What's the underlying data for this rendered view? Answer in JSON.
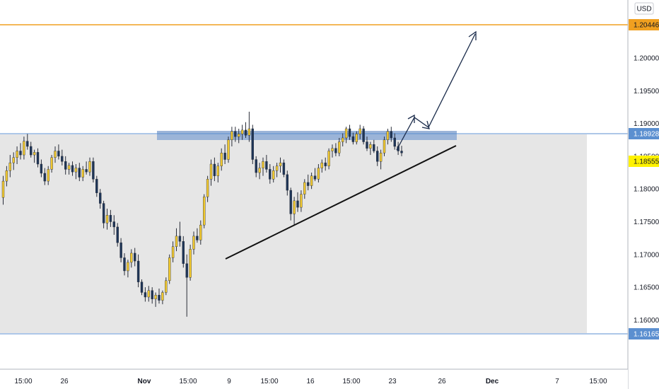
{
  "currency_label": "USD",
  "colors": {
    "bull": "#f0c830",
    "bear": "#1e3557",
    "wick": "#2a2e39",
    "resistance": "#5b8fd0",
    "resistance_zone": "#9bb4d8",
    "target": "#f0a020",
    "support_band": "#e6e6e6",
    "trendline": "#111111",
    "arrow": "#1a2b4a",
    "current_price_tag": "#fff200"
  },
  "chart_data": {
    "type": "candlestick",
    "y_ticks": [
      "1.16000",
      "1.16500",
      "1.17000",
      "1.17500",
      "1.18000",
      "1.18500",
      "1.19000",
      "1.19500",
      "1.20000"
    ],
    "ylim": [
      1.1565,
      1.2085
    ],
    "x_ticks": [
      "15:00",
      "26",
      "Nov",
      "15:00",
      "9",
      "15:00",
      "16",
      "15:00",
      "23",
      "26",
      "Dec",
      "7",
      "15:00"
    ],
    "price_levels": [
      {
        "label": "1.20446",
        "price": 1.20446,
        "role": "target",
        "color": "#f0a020"
      },
      {
        "label": "1.18928",
        "price": 1.18928,
        "role": "resistance",
        "color": "#5b8fd0"
      },
      {
        "label": "1.18555",
        "price": 1.18555,
        "role": "current",
        "color": "#fff200"
      },
      {
        "label": "1.16165",
        "price": 1.16165,
        "role": "support",
        "color": "#5b8fd0"
      }
    ],
    "candles": [
      [
        1.1787,
        1.182,
        1.1776,
        1.1812
      ],
      [
        1.1812,
        1.1835,
        1.1804,
        1.1828
      ],
      [
        1.1828,
        1.1852,
        1.1818,
        1.184
      ],
      [
        1.184,
        1.1856,
        1.1829,
        1.1848
      ],
      [
        1.1848,
        1.1865,
        1.1838,
        1.1858
      ],
      [
        1.1858,
        1.187,
        1.1845,
        1.1852
      ],
      [
        1.1852,
        1.188,
        1.1845,
        1.1873
      ],
      [
        1.1873,
        1.1884,
        1.186,
        1.1865
      ],
      [
        1.1865,
        1.1872,
        1.1848,
        1.1852
      ],
      [
        1.1852,
        1.186,
        1.184,
        1.1856
      ],
      [
        1.1856,
        1.1862,
        1.1833,
        1.1838
      ],
      [
        1.1838,
        1.1845,
        1.1818,
        1.1824
      ],
      [
        1.1824,
        1.1832,
        1.1806,
        1.1812
      ],
      [
        1.1812,
        1.1835,
        1.1806,
        1.183
      ],
      [
        1.183,
        1.1852,
        1.1825,
        1.1848
      ],
      [
        1.1848,
        1.1865,
        1.184,
        1.1858
      ],
      [
        1.1858,
        1.1868,
        1.1845,
        1.185
      ],
      [
        1.185,
        1.186,
        1.1836,
        1.1842
      ],
      [
        1.1842,
        1.185,
        1.1822,
        1.183
      ],
      [
        1.183,
        1.184,
        1.1822,
        1.1836
      ],
      [
        1.1836,
        1.1842,
        1.182,
        1.1826
      ],
      [
        1.1826,
        1.1838,
        1.1815,
        1.1832
      ],
      [
        1.1832,
        1.184,
        1.1812,
        1.1818
      ],
      [
        1.1818,
        1.1835,
        1.1812,
        1.183
      ],
      [
        1.183,
        1.1842,
        1.1822,
        1.1826
      ],
      [
        1.1826,
        1.1848,
        1.182,
        1.1842
      ],
      [
        1.1842,
        1.1848,
        1.181,
        1.1815
      ],
      [
        1.1815,
        1.182,
        1.1788,
        1.1794
      ],
      [
        1.1794,
        1.18,
        1.177,
        1.1778
      ],
      [
        1.1778,
        1.1782,
        1.174,
        1.1748
      ],
      [
        1.1748,
        1.177,
        1.1738,
        1.176
      ],
      [
        1.176,
        1.1768,
        1.1742,
        1.175
      ],
      [
        1.175,
        1.176,
        1.173,
        1.1742
      ],
      [
        1.1742,
        1.1748,
        1.1712,
        1.1718
      ],
      [
        1.1718,
        1.1725,
        1.1688,
        1.1695
      ],
      [
        1.1695,
        1.1702,
        1.1668,
        1.1675
      ],
      [
        1.1675,
        1.1692,
        1.1665,
        1.1688
      ],
      [
        1.1688,
        1.1708,
        1.168,
        1.1702
      ],
      [
        1.1702,
        1.171,
        1.1682,
        1.169
      ],
      [
        1.169,
        1.17,
        1.165,
        1.1658
      ],
      [
        1.1658,
        1.1662,
        1.1638,
        1.1642
      ],
      [
        1.1642,
        1.165,
        1.1628,
        1.1635
      ],
      [
        1.1635,
        1.1652,
        1.1628,
        1.1645
      ],
      [
        1.1645,
        1.165,
        1.1625,
        1.1632
      ],
      [
        1.1632,
        1.1642,
        1.162,
        1.1638
      ],
      [
        1.1638,
        1.1648,
        1.1625,
        1.163
      ],
      [
        1.163,
        1.1645,
        1.1624,
        1.1642
      ],
      [
        1.1642,
        1.1665,
        1.1638,
        1.166
      ],
      [
        1.166,
        1.17,
        1.1655,
        1.1695
      ],
      [
        1.1695,
        1.172,
        1.1688,
        1.1712
      ],
      [
        1.1712,
        1.174,
        1.1705,
        1.1728
      ],
      [
        1.1728,
        1.175,
        1.1712,
        1.172
      ],
      [
        1.172,
        1.1728,
        1.168,
        1.1686
      ],
      [
        1.1686,
        1.17,
        1.1605,
        1.1665
      ],
      [
        1.1665,
        1.1715,
        1.166,
        1.1708
      ],
      [
        1.1708,
        1.1735,
        1.17,
        1.1728
      ],
      [
        1.1728,
        1.174,
        1.1718,
        1.1722
      ],
      [
        1.1722,
        1.1752,
        1.1715,
        1.1745
      ],
      [
        1.1745,
        1.1792,
        1.174,
        1.1788
      ],
      [
        1.1788,
        1.182,
        1.178,
        1.1815
      ],
      [
        1.1815,
        1.1845,
        1.1805,
        1.1838
      ],
      [
        1.1838,
        1.1848,
        1.1812,
        1.182
      ],
      [
        1.182,
        1.184,
        1.181,
        1.1835
      ],
      [
        1.1835,
        1.1862,
        1.1828,
        1.1855
      ],
      [
        1.1855,
        1.1868,
        1.1838,
        1.1845
      ],
      [
        1.1845,
        1.188,
        1.184,
        1.1875
      ],
      [
        1.1875,
        1.1895,
        1.1865,
        1.1888
      ],
      [
        1.1888,
        1.1895,
        1.1872,
        1.188
      ],
      [
        1.188,
        1.1892,
        1.187,
        1.1884
      ],
      [
        1.1884,
        1.1898,
        1.1875,
        1.189
      ],
      [
        1.189,
        1.1902,
        1.1878,
        1.1882
      ],
      [
        1.1882,
        1.1918,
        1.1872,
        1.1892
      ],
      [
        1.1892,
        1.1898,
        1.1838,
        1.1845
      ],
      [
        1.1845,
        1.185,
        1.1818,
        1.1825
      ],
      [
        1.1825,
        1.184,
        1.1815,
        1.1832
      ],
      [
        1.1832,
        1.1848,
        1.182,
        1.1842
      ],
      [
        1.1842,
        1.1852,
        1.1825,
        1.183
      ],
      [
        1.183,
        1.1838,
        1.1808,
        1.1815
      ],
      [
        1.1815,
        1.1835,
        1.181,
        1.1828
      ],
      [
        1.1828,
        1.184,
        1.1818,
        1.1835
      ],
      [
        1.1835,
        1.1848,
        1.1825,
        1.184
      ],
      [
        1.184,
        1.1845,
        1.1818,
        1.1822
      ],
      [
        1.1822,
        1.1828,
        1.179,
        1.1798
      ],
      [
        1.1798,
        1.1802,
        1.1752,
        1.1762
      ],
      [
        1.1762,
        1.1788,
        1.1745,
        1.1782
      ],
      [
        1.1782,
        1.1795,
        1.1765,
        1.1772
      ],
      [
        1.1772,
        1.1798,
        1.1765,
        1.1792
      ],
      [
        1.1792,
        1.1815,
        1.1785,
        1.181
      ],
      [
        1.181,
        1.1822,
        1.1798,
        1.1805
      ],
      [
        1.1805,
        1.1825,
        1.18,
        1.182
      ],
      [
        1.182,
        1.1832,
        1.1812,
        1.1815
      ],
      [
        1.1815,
        1.1838,
        1.181,
        1.1832
      ],
      [
        1.1832,
        1.1845,
        1.1825,
        1.184
      ],
      [
        1.184,
        1.1848,
        1.1828,
        1.1835
      ],
      [
        1.1835,
        1.1862,
        1.183,
        1.1858
      ],
      [
        1.1858,
        1.1868,
        1.1848,
        1.1862
      ],
      [
        1.1862,
        1.187,
        1.185,
        1.1855
      ],
      [
        1.1855,
        1.1878,
        1.185,
        1.1872
      ],
      [
        1.1872,
        1.1885,
        1.1865,
        1.1878
      ],
      [
        1.1878,
        1.1895,
        1.187,
        1.1892
      ],
      [
        1.1892,
        1.1898,
        1.1875,
        1.188
      ],
      [
        1.188,
        1.1886,
        1.1868,
        1.1872
      ],
      [
        1.1872,
        1.1888,
        1.1868,
        1.1884
      ],
      [
        1.1884,
        1.1898,
        1.1876,
        1.1892
      ],
      [
        1.1892,
        1.1896,
        1.1868,
        1.1872
      ],
      [
        1.1872,
        1.188,
        1.1858,
        1.1862
      ],
      [
        1.1862,
        1.1872,
        1.1852,
        1.1868
      ],
      [
        1.1868,
        1.1875,
        1.1855,
        1.1858
      ],
      [
        1.1858,
        1.1865,
        1.1835,
        1.1842
      ],
      [
        1.1842,
        1.186,
        1.183,
        1.1855
      ],
      [
        1.1855,
        1.188,
        1.185,
        1.1875
      ],
      [
        1.1875,
        1.1892,
        1.1868,
        1.1888
      ],
      [
        1.1888,
        1.1895,
        1.1872,
        1.1878
      ],
      [
        1.1878,
        1.1885,
        1.186,
        1.1865
      ],
      [
        1.1865,
        1.1872,
        1.1852,
        1.1858
      ],
      [
        1.1858,
        1.1866,
        1.185,
        1.1855
      ]
    ]
  }
}
